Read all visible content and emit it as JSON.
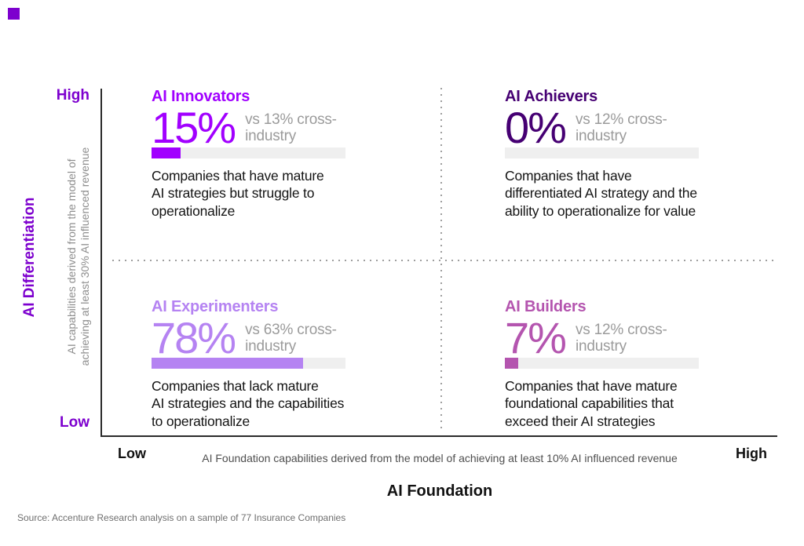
{
  "brand": {
    "corner_mark_color": "#7d00ce"
  },
  "colors": {
    "axis_purple": "#7d00ce",
    "innovators_purple": "#a100ff",
    "achievers_dark_purple": "#460073",
    "experimenters_light_purple": "#b583f2",
    "builders_orchid": "#b455af",
    "benchmark_gray": "#9b9b9b",
    "bar_track_gray": "#efefef"
  },
  "y_axis": {
    "title": "AI Differentiation",
    "high_label": "High",
    "low_label": "Low",
    "caption_lines": [
      "AI capabilities derived from the model of",
      "achieving at least 30% AI influenced revenue"
    ]
  },
  "x_axis": {
    "title": "AI Foundation",
    "low_label": "Low",
    "high_label": "High",
    "caption": "AI Foundation capabilities derived from the model of achieving at least 10% AI influenced revenue"
  },
  "quadrants": [
    {
      "title": "AI Innovators",
      "color": "#a100ff",
      "value": "15%",
      "bar_width": "15%",
      "vs_lines": [
        "vs 13% cross-",
        "industry"
      ],
      "desc_lines": [
        "Companies that have mature",
        "AI strategies but struggle to",
        "operationalize"
      ]
    },
    {
      "title": "AI Achievers",
      "color": "#460073",
      "value": "0%",
      "bar_width": "0%",
      "vs_lines": [
        "vs 12% cross-",
        "industry"
      ],
      "desc_lines": [
        "Companies that have",
        "differentiated AI strategy and the",
        "ability to operationalize for value"
      ]
    },
    {
      "title": "AI Experimenters",
      "color": "#b583f2",
      "value": "78%",
      "bar_width": "78%",
      "vs_lines": [
        "vs 63% cross-",
        "industry"
      ],
      "desc_lines": [
        "Companies that lack mature",
        "AI strategies and the capabilities",
        "to operationalize"
      ]
    },
    {
      "title": "AI Builders",
      "color": "#b455af",
      "value": "7%",
      "bar_width": "7%",
      "vs_lines": [
        "vs 12% cross-",
        "industry"
      ],
      "desc_lines": [
        "Companies that have mature",
        "foundational capabilities that",
        "exceed their AI strategies"
      ]
    }
  ],
  "source": "Source: Accenture Research analysis on a sample of 77 Insurance Companies",
  "chart_data": {
    "type": "bar",
    "layout": "2x2 quadrant matrix with horizontal progress bars",
    "categories": [
      "AI Innovators",
      "AI Achievers",
      "AI Experimenters",
      "AI Builders"
    ],
    "series": [
      {
        "name": "Insurance companies",
        "values": [
          15,
          0,
          78,
          7
        ]
      },
      {
        "name": "Cross-industry benchmark",
        "values": [
          13,
          12,
          63,
          12
        ]
      }
    ],
    "bar_scale": [
      0,
      100
    ],
    "xlabel": "AI Foundation",
    "ylabel": "AI Differentiation",
    "x_axis_range_labels": [
      "Low",
      "High"
    ],
    "y_axis_range_labels": [
      "Low",
      "High"
    ],
    "quadrant_positions": {
      "AI Innovators": "high differentiation / low foundation",
      "AI Achievers": "high differentiation / high foundation",
      "AI Experimenters": "low differentiation / low foundation",
      "AI Builders": "low differentiation / high foundation"
    },
    "grid": "dotted quadrant dividers",
    "source": "Source: Accenture Research analysis on a sample of 77 Insurance Companies"
  }
}
